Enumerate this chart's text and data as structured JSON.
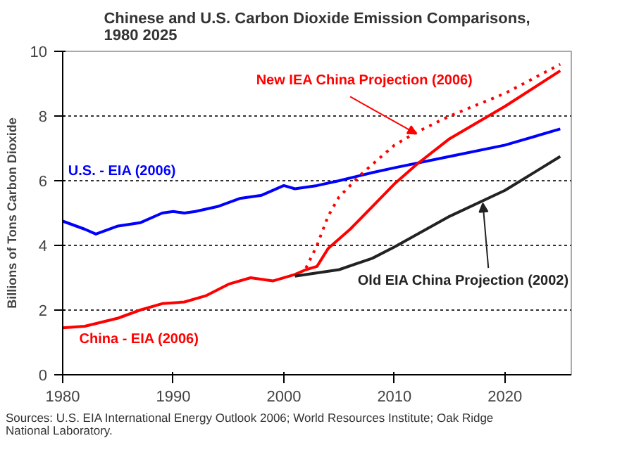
{
  "chart_data": {
    "type": "line",
    "title": "Chinese and U.S. Carbon Dioxide Emission Comparisons,\n1980 2025",
    "ylabel": "Billions of Tons Carbon Dioxide",
    "xlim": [
      1980,
      2026
    ],
    "xticks": [
      1980,
      1990,
      2000,
      2010,
      2020
    ],
    "ylim": [
      0,
      10
    ],
    "yticks": [
      0,
      2,
      4,
      6,
      8,
      10
    ],
    "grid": "y",
    "marker": "none",
    "series": [
      {
        "name": "U.S. - EIA (2006)",
        "color": "#0000ff",
        "x": [
          1980,
          1982,
          1983,
          1985,
          1987,
          1989,
          1990,
          1991,
          1992,
          1994,
          1996,
          1998,
          2000,
          2001,
          2003,
          2005,
          2008,
          2010,
          2015,
          2020,
          2025
        ],
        "values": [
          4.75,
          4.5,
          4.35,
          4.6,
          4.7,
          5.0,
          5.05,
          5.0,
          5.05,
          5.2,
          5.45,
          5.55,
          5.85,
          5.75,
          5.85,
          6.0,
          6.25,
          6.4,
          6.75,
          7.1,
          7.6
        ]
      },
      {
        "name": "China - EIA (2006)",
        "color": "#ff0000",
        "x": [
          1980,
          1982,
          1985,
          1987,
          1989,
          1991,
          1993,
          1995,
          1997,
          1999,
          2001,
          2002,
          2003,
          2004,
          2006,
          2008,
          2010,
          2012,
          2015,
          2020,
          2025
        ],
        "values": [
          1.45,
          1.5,
          1.75,
          2.0,
          2.2,
          2.25,
          2.45,
          2.8,
          3.0,
          2.9,
          3.1,
          3.25,
          3.35,
          3.9,
          4.5,
          5.2,
          5.9,
          6.5,
          7.3,
          8.3,
          9.4
        ]
      },
      {
        "name": "New IEA China Projection (2006)",
        "color": "#ff0000",
        "line_style": "dotted",
        "x": [
          2002,
          2003,
          2004,
          2005,
          2007,
          2010,
          2012,
          2015,
          2020,
          2025
        ],
        "values": [
          3.3,
          4.0,
          4.9,
          5.5,
          6.2,
          7.1,
          7.5,
          8.0,
          8.7,
          9.6
        ]
      },
      {
        "name": "Old EIA China Projection (2002)",
        "color": "#222222",
        "x": [
          2001,
          2005,
          2008,
          2010,
          2015,
          2020,
          2025
        ],
        "values": [
          3.05,
          3.25,
          3.6,
          3.95,
          4.9,
          5.7,
          6.75
        ]
      }
    ],
    "annotations": [
      "Sources: U.S. EIA International Energy Outlook 2006; World Resources Institute; Oak Ridge\nNational Laboratory."
    ]
  }
}
